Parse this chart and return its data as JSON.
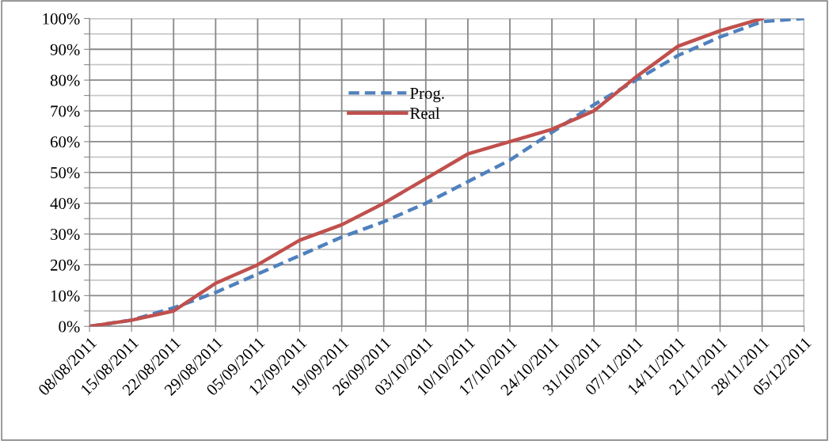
{
  "chart_data": {
    "type": "line",
    "x": [
      "2011-08-08",
      "2011-08-15",
      "2011-08-22",
      "2011-08-29",
      "2011-09-05",
      "2011-09-12",
      "2011-09-19",
      "2011-09-26",
      "2011-10-03",
      "2011-10-10",
      "2011-10-17",
      "2011-10-24",
      "2011-10-31",
      "2011-11-07",
      "2011-11-14",
      "2011-11-21",
      "2011-11-28",
      "2011-12-05"
    ],
    "series": [
      {
        "name": "Prog.",
        "color": "#4f81bd",
        "line_style": "dashed",
        "values": [
          0,
          2,
          6,
          11,
          17,
          23,
          29,
          34,
          40,
          47,
          54,
          63,
          72,
          80,
          88,
          94,
          99,
          100
        ]
      },
      {
        "name": "Real",
        "color": "#c0504d",
        "line_style": "solid",
        "values": [
          0,
          2,
          5,
          14,
          20,
          28,
          33,
          40,
          48,
          56,
          60,
          64,
          70,
          81,
          91,
          96,
          100,
          null
        ]
      }
    ],
    "xlim": [
      "2011-08-08",
      "2011-12-05"
    ],
    "xticks": [
      {
        "value": "2011-08-08",
        "label": "08/08/2011"
      },
      {
        "value": "2011-08-15",
        "label": "15/08/2011"
      },
      {
        "value": "2011-08-22",
        "label": "22/08/2011"
      },
      {
        "value": "2011-08-29",
        "label": "29/08/2011"
      },
      {
        "value": "2011-09-05",
        "label": "05/09/2011"
      },
      {
        "value": "2011-09-12",
        "label": "12/09/2011"
      },
      {
        "value": "2011-09-19",
        "label": "19/09/2011"
      },
      {
        "value": "2011-09-26",
        "label": "26/09/2011"
      },
      {
        "value": "2011-10-03",
        "label": "03/10/2011"
      },
      {
        "value": "2011-10-10",
        "label": "10/10/2011"
      },
      {
        "value": "2011-10-17",
        "label": "17/10/2011"
      },
      {
        "value": "2011-10-24",
        "label": "24/10/2011"
      },
      {
        "value": "2011-10-31",
        "label": "31/10/2011"
      },
      {
        "value": "2011-11-07",
        "label": "07/11/2011"
      },
      {
        "value": "2011-11-14",
        "label": "14/11/2011"
      },
      {
        "value": "2011-11-21",
        "label": "21/11/2011"
      },
      {
        "value": "2011-11-28",
        "label": "28/11/2011"
      },
      {
        "value": "2011-12-05",
        "label": "05/12/2011"
      }
    ],
    "ylim": [
      0,
      100
    ],
    "yticks": [
      {
        "value": 0,
        "label": "0%"
      },
      {
        "value": 5,
        "label": null
      },
      {
        "value": 10,
        "label": "10%"
      },
      {
        "value": 15,
        "label": null
      },
      {
        "value": 20,
        "label": "20%"
      },
      {
        "value": 25,
        "label": null
      },
      {
        "value": 30,
        "label": "30%"
      },
      {
        "value": 35,
        "label": null
      },
      {
        "value": 40,
        "label": "40%"
      },
      {
        "value": 45,
        "label": null
      },
      {
        "value": 50,
        "label": "50%"
      },
      {
        "value": 55,
        "label": null
      },
      {
        "value": 60,
        "label": "60%"
      },
      {
        "value": 65,
        "label": null
      },
      {
        "value": 70,
        "label": "70%"
      },
      {
        "value": 75,
        "label": null
      },
      {
        "value": 80,
        "label": "80%"
      },
      {
        "value": 85,
        "label": null
      },
      {
        "value": 90,
        "label": "90%"
      },
      {
        "value": 95,
        "label": null
      },
      {
        "value": 100,
        "label": "100%"
      }
    ],
    "grid": true,
    "legend": "top",
    "marker": "none"
  }
}
